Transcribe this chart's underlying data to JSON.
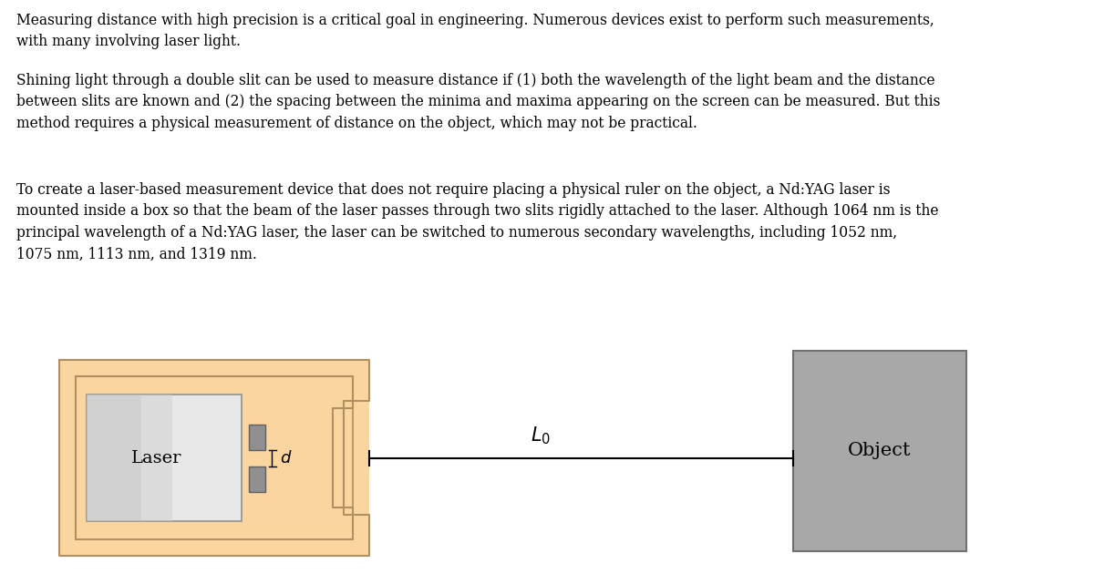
{
  "bg_color": "#ffffff",
  "text_color": "#000000",
  "paragraph1": "Measuring distance with high precision is a critical goal in engineering. Numerous devices exist to perform such measurements,\nwith many involving laser light.",
  "paragraph2": "Shining light through a double slit can be used to measure distance if (1) both the wavelength of the light beam and the distance\nbetween slits are known and (2) the spacing between the minima and maxima appearing on the screen can be measured. But this\nmethod requires a physical measurement of distance on the object, which may not be practical.",
  "paragraph3": "To create a laser-based measurement device that does not require placing a physical ruler on the object, a Nd:YAG laser is\nmounted inside a box so that the beam of the laser passes through two slits rigidly attached to the laser. Although 1064 nm is the\nprincipal wavelength of a Nd:YAG laser, the laser can be switched to numerous secondary wavelengths, including 1052 nm,\n1075 nm, 1113 nm, and 1319 nm.",
  "font_size_text": 11.2,
  "outer_box_color": "#fad5a0",
  "outer_box_edge": "#b09060",
  "laser_body_color": "#c8c8c8",
  "laser_gradient_color": "#e8e8e8",
  "laser_edge_color": "#909090",
  "slit_color": "#909090",
  "slit_edge_color": "#606060",
  "object_color": "#a8a8a8",
  "object_edge_color": "#707070",
  "line_color": "#000000",
  "diagram_font_size": 13,
  "text_font": "DejaVu Serif"
}
